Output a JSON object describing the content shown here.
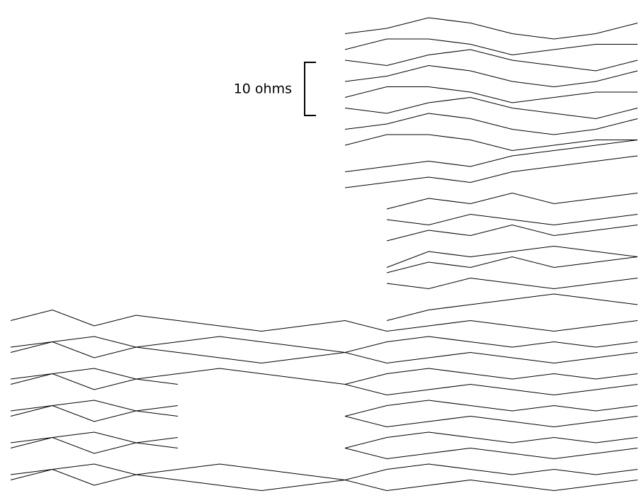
{
  "chart_data": {
    "type": "line",
    "color": "#000000",
    "scale_bar": {
      "label": "10 ohms",
      "value": 10
    },
    "x": [
      0,
      2,
      4,
      6,
      8,
      10,
      12,
      14,
      16,
      18,
      20,
      22,
      24,
      26,
      28,
      30
    ],
    "xlim": [
      0,
      30
    ],
    "ylim": [
      0,
      92
    ],
    "series": [
      {
        "values": [
          null,
          null,
          null,
          null,
          null,
          null,
          null,
          null,
          87,
          88,
          90,
          89,
          87,
          86,
          87,
          89
        ]
      },
      {
        "values": [
          null,
          null,
          null,
          null,
          null,
          null,
          null,
          null,
          84,
          86,
          86,
          85,
          83,
          84,
          85,
          85
        ]
      },
      {
        "values": [
          null,
          null,
          null,
          null,
          null,
          null,
          null,
          null,
          82,
          81,
          83,
          84,
          82,
          81,
          80,
          82
        ]
      },
      {
        "values": [
          null,
          null,
          null,
          null,
          null,
          null,
          null,
          null,
          78,
          79,
          81,
          80,
          78,
          77,
          78,
          80
        ]
      },
      {
        "values": [
          null,
          null,
          null,
          null,
          null,
          null,
          null,
          null,
          75,
          77,
          77,
          76,
          74,
          75,
          76,
          76
        ]
      },
      {
        "values": [
          null,
          null,
          null,
          null,
          null,
          null,
          null,
          null,
          73,
          72,
          74,
          75,
          73,
          72,
          71,
          73
        ]
      },
      {
        "values": [
          null,
          null,
          null,
          null,
          null,
          null,
          null,
          null,
          69,
          70,
          72,
          71,
          69,
          68,
          69,
          71
        ]
      },
      {
        "values": [
          null,
          null,
          null,
          null,
          null,
          null,
          null,
          null,
          66,
          68,
          68,
          67,
          65,
          66,
          67,
          67
        ]
      },
      {
        "values": [
          null,
          null,
          null,
          null,
          null,
          null,
          null,
          null,
          61,
          62,
          63,
          62,
          64,
          65,
          66,
          67
        ]
      },
      {
        "values": [
          null,
          null,
          null,
          null,
          null,
          null,
          null,
          null,
          58,
          59,
          60,
          59,
          61,
          62,
          63,
          64
        ]
      },
      {
        "values": [
          null,
          null,
          null,
          null,
          null,
          null,
          null,
          null,
          null,
          54,
          56,
          55,
          57,
          55,
          56,
          57
        ]
      },
      {
        "values": [
          null,
          null,
          null,
          null,
          null,
          null,
          null,
          null,
          null,
          52,
          51,
          53,
          52,
          51,
          52,
          53
        ]
      },
      {
        "values": [
          null,
          null,
          null,
          null,
          null,
          null,
          null,
          null,
          null,
          48,
          50,
          49,
          51,
          49,
          50,
          51
        ]
      },
      {
        "values": [
          null,
          null,
          null,
          null,
          null,
          null,
          null,
          null,
          null,
          43,
          46,
          45,
          46,
          47,
          46,
          45
        ]
      },
      {
        "values": [
          null,
          null,
          null,
          null,
          null,
          null,
          null,
          null,
          null,
          42,
          44,
          43,
          45,
          43,
          44,
          45
        ]
      },
      {
        "values": [
          null,
          null,
          null,
          null,
          null,
          null,
          null,
          null,
          null,
          40,
          39,
          41,
          40,
          39,
          40,
          41
        ]
      },
      {
        "values": [
          null,
          null,
          null,
          null,
          null,
          null,
          null,
          null,
          null,
          33,
          35,
          36,
          37,
          38,
          37,
          36
        ]
      },
      {
        "values": [
          33,
          35,
          32,
          34,
          33,
          32,
          31,
          32,
          33,
          31,
          32,
          33,
          32,
          31,
          32,
          33
        ]
      },
      {
        "values": [
          28,
          29,
          30,
          28,
          29,
          30,
          29,
          28,
          27,
          29,
          30,
          29,
          28,
          29,
          28,
          29
        ]
      },
      {
        "values": [
          27,
          29,
          26,
          28,
          27,
          26,
          25,
          26,
          27,
          25,
          26,
          27,
          26,
          25,
          26,
          27
        ]
      },
      {
        "values": [
          22,
          23,
          24,
          22,
          23,
          24,
          23,
          22,
          21,
          23,
          24,
          23,
          22,
          23,
          22,
          23
        ]
      },
      {
        "values": [
          21,
          23,
          20,
          22,
          21,
          null,
          null,
          null,
          21,
          19,
          20,
          21,
          20,
          19,
          20,
          21
        ]
      },
      {
        "values": [
          16,
          17,
          18,
          16,
          17,
          null,
          null,
          null,
          15,
          17,
          18,
          17,
          16,
          17,
          16,
          17
        ]
      },
      {
        "values": [
          15,
          17,
          14,
          16,
          15,
          null,
          null,
          null,
          15,
          13,
          14,
          15,
          14,
          13,
          14,
          15
        ]
      },
      {
        "values": [
          10,
          11,
          12,
          10,
          11,
          null,
          null,
          null,
          9,
          11,
          12,
          11,
          10,
          11,
          10,
          11
        ]
      },
      {
        "values": [
          9,
          11,
          8,
          10,
          9,
          null,
          null,
          null,
          9,
          7,
          8,
          9,
          8,
          7,
          8,
          9
        ]
      },
      {
        "values": [
          4,
          5,
          6,
          4,
          5,
          6,
          5,
          4,
          3,
          5,
          6,
          5,
          4,
          5,
          4,
          5
        ]
      },
      {
        "values": [
          3,
          5,
          2,
          4,
          3,
          2,
          1,
          2,
          3,
          1,
          2,
          3,
          2,
          1,
          2,
          3
        ]
      }
    ]
  }
}
